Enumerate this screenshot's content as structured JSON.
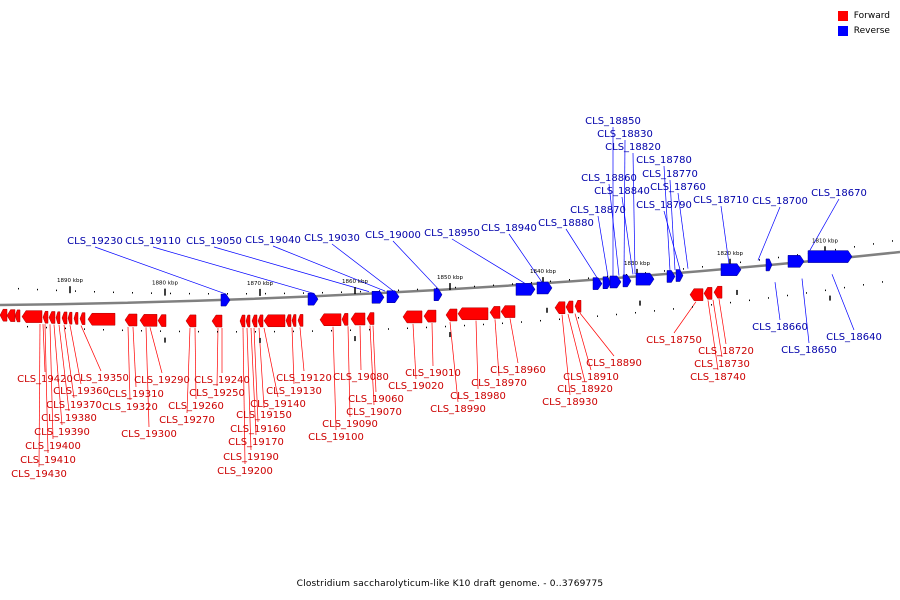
{
  "colors": {
    "forward": "#ff0000",
    "reverse": "#0000ff",
    "forward_label": "#cc0000",
    "reverse_label": "#0000aa",
    "backbone": "#808080"
  },
  "legend": {
    "forward": "Forward",
    "reverse": "Reverse"
  },
  "caption": "Clostridium saccharolyticum-like K10 draft genome. - 0..3769775",
  "ticks": [
    "1890 kbp",
    "1880 kbp",
    "1870 kbp",
    "1860 kbp",
    "1850 kbp",
    "1840 kbp",
    "1830 kbp",
    "1820 kbp",
    "1810 kbp"
  ],
  "forward_labels": [
    "CLS_19420",
    "CLS_19350",
    "CLS_19360",
    "CLS_19370",
    "CLS_19380",
    "CLS_19390",
    "CLS_19400",
    "CLS_19410",
    "CLS_19430",
    "CLS_19290",
    "CLS_19310",
    "CLS_19320",
    "CLS_19300",
    "CLS_19240",
    "CLS_19250",
    "CLS_19260",
    "CLS_19270",
    "CLS_19120",
    "CLS_19130",
    "CLS_19140",
    "CLS_19150",
    "CLS_19160",
    "CLS_19170",
    "CLS_19190",
    "CLS_19200",
    "CLS_19080",
    "CLS_19060",
    "CLS_19070",
    "CLS_19090",
    "CLS_19100",
    "CLS_19010",
    "CLS_19020",
    "CLS_18990",
    "CLS_18960",
    "CLS_18970",
    "CLS_18980",
    "CLS_18890",
    "CLS_18910",
    "CLS_18920",
    "CLS_18930",
    "CLS_18750",
    "CLS_18720",
    "CLS_18730",
    "CLS_18740"
  ],
  "reverse_labels": [
    "CLS_18850",
    "CLS_18830",
    "CLS_18820",
    "CLS_18780",
    "CLS_18770",
    "CLS_18860",
    "CLS_18840",
    "CLS_18760",
    "CLS_18790",
    "CLS_18870",
    "CLS_18710",
    "CLS_18700",
    "CLS_18670",
    "CLS_18880",
    "CLS_18940",
    "CLS_18950",
    "CLS_19000",
    "CLS_19030",
    "CLS_19040",
    "CLS_19050",
    "CLS_19110",
    "CLS_19230",
    "CLS_18660",
    "CLS_18650",
    "CLS_18640"
  ]
}
